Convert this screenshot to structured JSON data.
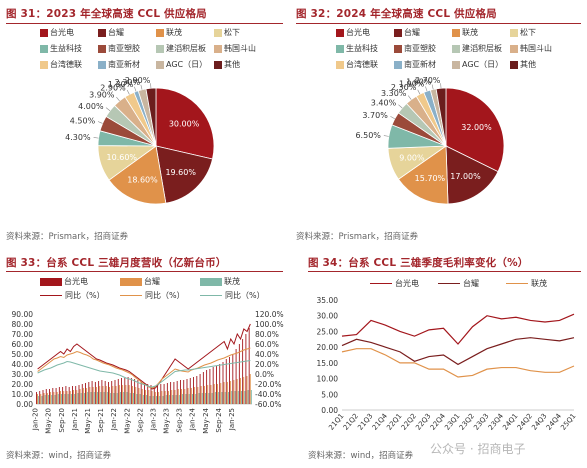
{
  "colors": {
    "title_red": "#a3262c",
    "taiguang": "#a3161c",
    "taiyao": "#7a1e1e",
    "liantmao": "#e0924a",
    "songxia": "#e6d49a",
    "shengyi": "#7fb8a8",
    "nanya": "#9b4a3a",
    "jiantao": "#b6c7b4",
    "hanguo": "#d9b08a",
    "taiwan_delian": "#f0c98b",
    "nanya_xincai": "#8ab0c8",
    "agc": "#c9b6a0",
    "other": "#6b1d1d"
  },
  "watermark": "公众号 · 招商电子",
  "panels": [
    {
      "id": "fig31",
      "title": "图 31：2023 年全球高速 CCL 供应格局",
      "source": "资料来源：Prismark，招商证券",
      "legend": [
        {
          "label": "台光电",
          "color": "#a3161c"
        },
        {
          "label": "台耀",
          "color": "#7a1e1e"
        },
        {
          "label": "联茂",
          "color": "#e0924a"
        },
        {
          "label": "松下",
          "color": "#e6d49a"
        },
        {
          "label": "生益科技",
          "color": "#7fb8a8"
        },
        {
          "label": "南亚塑胶",
          "color": "#9b4a3a"
        },
        {
          "label": "建滔积层板",
          "color": "#b6c7b4"
        },
        {
          "label": "韩国斗山",
          "color": "#d9b08a"
        },
        {
          "label": "台湾德联",
          "color": "#f0c98b"
        },
        {
          "label": "南亚新材",
          "color": "#8ab0c8"
        },
        {
          "label": "AGC（日）",
          "color": "#c9b6a0"
        },
        {
          "label": "其他",
          "color": "#6b1d1d"
        }
      ]
    },
    {
      "id": "fig32",
      "title": "图 32：2024 年全球高速 CCL 供应格局",
      "source": "资料来源：Prismark，招商证券",
      "legend": [
        {
          "label": "台光电",
          "color": "#a3161c"
        },
        {
          "label": "台耀",
          "color": "#7a1e1e"
        },
        {
          "label": "联茂",
          "color": "#e0924a"
        },
        {
          "label": "松下",
          "color": "#e6d49a"
        },
        {
          "label": "生益科技",
          "color": "#7fb8a8"
        },
        {
          "label": "南亚塑胶",
          "color": "#9b4a3a"
        },
        {
          "label": "建滔积层板",
          "color": "#b6c7b4"
        },
        {
          "label": "韩国斗山",
          "color": "#d9b08a"
        },
        {
          "label": "台湾德联",
          "color": "#f0c98b"
        },
        {
          "label": "南亚新材",
          "color": "#8ab0c8"
        },
        {
          "label": "AGC（日）",
          "color": "#c9b6a0"
        },
        {
          "label": "其他",
          "color": "#6b1d1d"
        }
      ]
    },
    {
      "id": "fig33",
      "title": "图 33：台系 CCL 三雄月度营收（亿新台币）",
      "source": "资料来源：wind，招商证券",
      "legend": [
        {
          "label": "台光电",
          "kind": "bar",
          "color": "#a3161c"
        },
        {
          "label": "台耀",
          "kind": "bar",
          "color": "#e0924a"
        },
        {
          "label": "联茂",
          "kind": "bar",
          "color": "#7fb8a8"
        },
        {
          "label": "同比（%）",
          "kind": "line",
          "color": "#a3161c"
        },
        {
          "label": "同比（%）",
          "kind": "line",
          "color": "#e0924a"
        },
        {
          "label": "同比（%）",
          "kind": "line",
          "color": "#7fb8a8"
        }
      ]
    },
    {
      "id": "fig34",
      "title": "图 34：台系 CCL 三雄季度毛利率变化（%）",
      "source": "资料来源：wind，招商证券",
      "legend": [
        {
          "label": "台光电",
          "color": "#a3161c"
        },
        {
          "label": "台耀",
          "color": "#7a1e1e"
        },
        {
          "label": "联茂",
          "color": "#e0924a"
        }
      ]
    }
  ],
  "chart_data": [
    {
      "type": "pie",
      "title": "图 31：2023 年全球高速 CCL 供应格局",
      "slices": [
        {
          "name": "台光电",
          "value": 30.0,
          "label": "30.00%"
        },
        {
          "name": "台耀",
          "value": 19.6,
          "label": "19.60%"
        },
        {
          "name": "联茂",
          "value": 18.6,
          "label": "18.60%"
        },
        {
          "name": "松下",
          "value": 10.6,
          "label": "10.60%"
        },
        {
          "name": "生益科技",
          "value": 4.3,
          "label": "4.30%"
        },
        {
          "name": "南亚塑胶",
          "value": 4.5,
          "label": "4.50%"
        },
        {
          "name": "建滔积层板",
          "value": 4.0,
          "label": "4.00%"
        },
        {
          "name": "韩国斗山",
          "value": 3.9,
          "label": "3.90%"
        },
        {
          "name": "台湾德联",
          "value": 2.9,
          "label": "2.90%"
        },
        {
          "name": "南亚新材",
          "value": 1.3,
          "label": "1.30%"
        },
        {
          "name": "AGC（日）",
          "value": 2.3,
          "label": "2.30%"
        },
        {
          "name": "其他",
          "value": 2.9,
          "label": "2.90%"
        }
      ]
    },
    {
      "type": "pie",
      "title": "图 32：2024 年全球高速 CCL 供应格局",
      "slices": [
        {
          "name": "台光电",
          "value": 32.0,
          "label": "32.00%"
        },
        {
          "name": "台耀",
          "value": 17.0,
          "label": "17.00%"
        },
        {
          "name": "联茂",
          "value": 15.7,
          "label": "15.70%"
        },
        {
          "name": "松下",
          "value": 9.0,
          "label": "9.00%"
        },
        {
          "name": "生益科技",
          "value": 6.5,
          "label": "6.50%"
        },
        {
          "name": "南亚塑胶",
          "value": 3.7,
          "label": "3.70%"
        },
        {
          "name": "建滔积层板",
          "value": 3.4,
          "label": "3.40%"
        },
        {
          "name": "韩国斗山",
          "value": 3.3,
          "label": "3.30%"
        },
        {
          "name": "台湾德联",
          "value": 2.3,
          "label": "2.30%"
        },
        {
          "name": "南亚新材",
          "value": 1.9,
          "label": "1.90%"
        },
        {
          "name": "AGC（日）",
          "value": 1.6,
          "label": "1.60%"
        },
        {
          "name": "其他",
          "value": 2.7,
          "label": "2.70%"
        }
      ]
    },
    {
      "type": "bar",
      "title": "图 33：台系 CCL 三雄月度营收（亿新台币）",
      "x_ticks": [
        "Jan-20",
        "May-20",
        "Sep-20",
        "Jan-21",
        "May-21",
        "Sep-21",
        "Jan-22",
        "May-22",
        "Sep-22",
        "Jan-23",
        "May-23",
        "Sep-23",
        "Jan-24",
        "May-24",
        "Sep-24",
        "Jan-25"
      ],
      "months": 66,
      "ylim_left": [
        0,
        90
      ],
      "left_ticks": [
        "0.00",
        "10.00",
        "20.00",
        "30.00",
        "40.00",
        "50.00",
        "60.00",
        "70.00",
        "80.00",
        "90.00"
      ],
      "ylim_right": [
        -60,
        120
      ],
      "right_ticks": [
        "-60.0%",
        "-40.0%",
        "-20.0%",
        "0.0%",
        "20.0%",
        "40.0%",
        "60.0%",
        "80.0%",
        "100.0%",
        "120.0%"
      ],
      "series": [
        {
          "name": "台光电",
          "kind": "bar",
          "values": [
            12,
            13,
            14,
            15,
            15,
            16,
            16,
            17,
            17,
            18,
            17,
            18,
            18,
            19,
            20,
            21,
            22,
            23,
            22,
            23,
            24,
            23,
            22,
            23,
            24,
            25,
            26,
            26,
            27,
            26,
            25,
            24,
            22,
            21,
            20,
            19,
            18,
            19,
            20,
            20,
            21,
            22,
            22,
            23,
            24,
            24,
            25,
            26,
            27,
            28,
            30,
            32,
            34,
            35,
            37,
            38,
            40,
            42,
            45,
            47,
            50,
            55,
            60,
            65,
            70,
            76
          ]
        },
        {
          "name": "台耀",
          "kind": "bar",
          "values": [
            10,
            10,
            11,
            11,
            12,
            12,
            12,
            13,
            13,
            13,
            13,
            14,
            14,
            15,
            16,
            16,
            17,
            17,
            17,
            18,
            18,
            18,
            17,
            18,
            18,
            19,
            19,
            19,
            19,
            18,
            17,
            16,
            15,
            14,
            14,
            13,
            12,
            12,
            13,
            13,
            13,
            14,
            14,
            15,
            15,
            15,
            16,
            16,
            17,
            17,
            18,
            18,
            19,
            19,
            20,
            20,
            21,
            22,
            22,
            23,
            24,
            25,
            26,
            27,
            28,
            30
          ]
        },
        {
          "name": "联茂",
          "kind": "bar",
          "values": [
            8,
            8,
            9,
            9,
            9,
            9,
            10,
            10,
            10,
            10,
            10,
            10,
            11,
            11,
            11,
            12,
            12,
            12,
            12,
            12,
            12,
            12,
            11,
            11,
            11,
            12,
            12,
            12,
            11,
            11,
            10,
            10,
            9,
            9,
            8,
            8,
            8,
            8,
            8,
            9,
            9,
            9,
            9,
            9,
            10,
            10,
            10,
            10,
            10,
            11,
            11,
            11,
            11,
            11,
            12,
            12,
            12,
            12,
            12,
            13,
            13,
            13,
            13,
            13,
            14,
            14
          ]
        },
        {
          "name": "同比（%）",
          "kind": "line",
          "color": "#a3161c",
          "values": [
            10,
            15,
            20,
            25,
            30,
            35,
            40,
            45,
            40,
            50,
            45,
            55,
            60,
            55,
            50,
            45,
            40,
            35,
            30,
            28,
            25,
            22,
            20,
            18,
            15,
            12,
            10,
            8,
            5,
            0,
            -5,
            -10,
            -15,
            -20,
            -25,
            -30,
            -28,
            -20,
            -10,
            0,
            10,
            20,
            30,
            25,
            20,
            15,
            10,
            15,
            20,
            25,
            30,
            35,
            40,
            45,
            50,
            55,
            60,
            65,
            50,
            70,
            60,
            80,
            70,
            90,
            85,
            100
          ]
        },
        {
          "name": "同比（%）",
          "kind": "line",
          "color": "#e0924a",
          "values": [
            5,
            10,
            15,
            20,
            25,
            30,
            32,
            35,
            33,
            38,
            40,
            42,
            45,
            43,
            40,
            38,
            35,
            30,
            28,
            25,
            22,
            20,
            18,
            15,
            12,
            10,
            8,
            5,
            2,
            -2,
            -8,
            -12,
            -18,
            -22,
            -26,
            -28,
            -25,
            -18,
            -10,
            -5,
            0,
            5,
            10,
            8,
            6,
            5,
            4,
            8,
            10,
            12,
            15,
            18,
            20,
            22,
            25,
            28,
            30,
            32,
            35,
            38,
            40,
            42,
            45,
            48,
            50,
            52
          ]
        },
        {
          "name": "同比（%）",
          "kind": "line",
          "color": "#7fb8a8",
          "values": [
            2,
            5,
            8,
            10,
            12,
            15,
            18,
            20,
            22,
            25,
            24,
            22,
            20,
            18,
            16,
            14,
            12,
            10,
            8,
            6,
            5,
            4,
            3,
            2,
            0,
            -2,
            -5,
            -8,
            -10,
            -12,
            -15,
            -18,
            -20,
            -22,
            -25,
            -26,
            -24,
            -20,
            -15,
            -10,
            -5,
            0,
            5,
            6,
            7,
            8,
            8,
            9,
            10,
            11,
            12,
            13,
            14,
            15,
            16,
            17,
            18,
            19,
            20,
            21,
            22,
            23,
            24,
            25,
            26,
            27
          ]
        }
      ]
    },
    {
      "type": "line",
      "title": "图 34：台系 CCL 三雄季度毛利率变化（%）",
      "categories": [
        "21Q1",
        "21Q2",
        "21Q3",
        "21Q4",
        "22Q1",
        "22Q2",
        "22Q3",
        "22Q4",
        "23Q1",
        "23Q2",
        "23Q3",
        "23Q4",
        "24Q1",
        "24Q2",
        "24Q3",
        "24Q4",
        "25Q1"
      ],
      "ylim": [
        0,
        35
      ],
      "y_ticks": [
        "0.00",
        "5.00",
        "10.00",
        "15.00",
        "20.00",
        "25.00",
        "30.00",
        "35.00"
      ],
      "series": [
        {
          "name": "台光电",
          "values": [
            23.5,
            24.0,
            28.5,
            27.0,
            25.0,
            23.5,
            25.5,
            26.0,
            21.0,
            26.5,
            30.0,
            29.0,
            29.5,
            28.5,
            28.0,
            28.5,
            30.5
          ]
        },
        {
          "name": "台耀",
          "values": [
            20.5,
            22.5,
            21.5,
            20.0,
            18.5,
            15.5,
            17.0,
            17.5,
            14.5,
            17.0,
            19.5,
            21.0,
            22.5,
            23.0,
            22.5,
            22.0,
            23.0
          ]
        },
        {
          "name": "联茂",
          "values": [
            18.5,
            19.5,
            19.5,
            17.5,
            15.0,
            15.0,
            13.0,
            13.0,
            10.5,
            11.0,
            13.0,
            13.5,
            13.5,
            12.5,
            12.0,
            12.0,
            14.0
          ]
        }
      ]
    }
  ]
}
